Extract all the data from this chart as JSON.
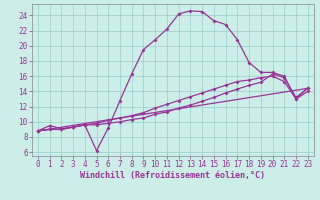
{
  "xlabel": "Windchill (Refroidissement éolien,°C)",
  "xlim": [
    -0.5,
    23.5
  ],
  "ylim": [
    5.5,
    25.5
  ],
  "xticks": [
    0,
    1,
    2,
    3,
    4,
    5,
    6,
    7,
    8,
    9,
    10,
    11,
    12,
    13,
    14,
    15,
    16,
    17,
    18,
    19,
    20,
    21,
    22,
    23
  ],
  "yticks": [
    6,
    8,
    10,
    12,
    14,
    16,
    18,
    20,
    22,
    24
  ],
  "bg_color": "#cceee8",
  "line_color": "#993399",
  "grid_color": "#99cccc",
  "curve1_x": [
    0,
    1,
    2,
    3,
    4,
    5,
    6,
    7,
    8,
    9,
    10,
    11,
    12,
    13,
    14,
    15,
    16,
    17,
    18,
    19,
    20,
    21,
    22,
    23
  ],
  "curve1_y": [
    8.8,
    9.5,
    9.1,
    9.3,
    9.6,
    6.2,
    9.2,
    12.8,
    16.3,
    19.5,
    20.8,
    22.2,
    24.2,
    24.6,
    24.5,
    23.3,
    22.8,
    20.8,
    17.8,
    16.5,
    16.5,
    16.0,
    13.0,
    14.5
  ],
  "curve2_x": [
    0,
    1,
    2,
    3,
    4,
    5,
    6,
    7,
    8,
    9,
    10,
    11,
    12,
    13,
    14,
    15,
    16,
    17,
    18,
    19,
    20,
    21,
    22,
    23
  ],
  "curve2_y": [
    8.8,
    9.0,
    9.0,
    9.3,
    9.6,
    9.6,
    9.8,
    10.0,
    10.3,
    10.5,
    11.0,
    11.3,
    11.8,
    12.2,
    12.7,
    13.2,
    13.8,
    14.3,
    14.8,
    15.2,
    16.3,
    15.8,
    13.2,
    14.4
  ],
  "curve3_x": [
    0,
    1,
    2,
    3,
    4,
    5,
    6,
    7,
    8,
    9,
    10,
    11,
    12,
    13,
    14,
    15,
    16,
    17,
    18,
    19,
    20,
    21,
    22,
    23
  ],
  "curve3_y": [
    8.8,
    9.0,
    9.0,
    9.3,
    9.6,
    9.8,
    10.2,
    10.5,
    10.8,
    11.2,
    11.8,
    12.3,
    12.8,
    13.3,
    13.8,
    14.3,
    14.8,
    15.3,
    15.5,
    15.8,
    16.0,
    15.3,
    13.0,
    14.0
  ],
  "curve4_x": [
    0,
    23
  ],
  "curve4_y": [
    8.8,
    14.4
  ],
  "markersize": 2.0,
  "linewidth": 0.9,
  "tick_fontsize": 5.5,
  "xlabel_fontsize": 6.0
}
